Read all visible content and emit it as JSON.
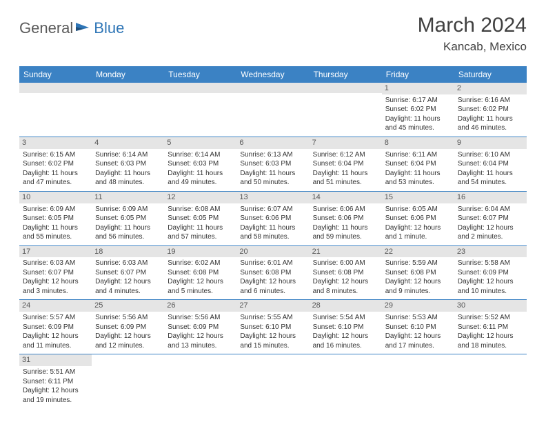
{
  "logo": {
    "textGeneral": "General",
    "textBlue": "Blue"
  },
  "title": "March 2024",
  "location": "Kancab, Mexico",
  "colors": {
    "headerBg": "#3b82c4",
    "headerText": "#ffffff",
    "dayNumBg": "#e5e5e5",
    "borderColor": "#3b82c4",
    "textColor": "#333333",
    "logoGray": "#5a5a5a",
    "logoBlue": "#2e75b6"
  },
  "dayHeaders": [
    "Sunday",
    "Monday",
    "Tuesday",
    "Wednesday",
    "Thursday",
    "Friday",
    "Saturday"
  ],
  "weeks": [
    [
      null,
      null,
      null,
      null,
      null,
      {
        "num": "1",
        "sunrise": "Sunrise: 6:17 AM",
        "sunset": "Sunset: 6:02 PM",
        "daylight": "Daylight: 11 hours and 45 minutes."
      },
      {
        "num": "2",
        "sunrise": "Sunrise: 6:16 AM",
        "sunset": "Sunset: 6:02 PM",
        "daylight": "Daylight: 11 hours and 46 minutes."
      }
    ],
    [
      {
        "num": "3",
        "sunrise": "Sunrise: 6:15 AM",
        "sunset": "Sunset: 6:02 PM",
        "daylight": "Daylight: 11 hours and 47 minutes."
      },
      {
        "num": "4",
        "sunrise": "Sunrise: 6:14 AM",
        "sunset": "Sunset: 6:03 PM",
        "daylight": "Daylight: 11 hours and 48 minutes."
      },
      {
        "num": "5",
        "sunrise": "Sunrise: 6:14 AM",
        "sunset": "Sunset: 6:03 PM",
        "daylight": "Daylight: 11 hours and 49 minutes."
      },
      {
        "num": "6",
        "sunrise": "Sunrise: 6:13 AM",
        "sunset": "Sunset: 6:03 PM",
        "daylight": "Daylight: 11 hours and 50 minutes."
      },
      {
        "num": "7",
        "sunrise": "Sunrise: 6:12 AM",
        "sunset": "Sunset: 6:04 PM",
        "daylight": "Daylight: 11 hours and 51 minutes."
      },
      {
        "num": "8",
        "sunrise": "Sunrise: 6:11 AM",
        "sunset": "Sunset: 6:04 PM",
        "daylight": "Daylight: 11 hours and 53 minutes."
      },
      {
        "num": "9",
        "sunrise": "Sunrise: 6:10 AM",
        "sunset": "Sunset: 6:04 PM",
        "daylight": "Daylight: 11 hours and 54 minutes."
      }
    ],
    [
      {
        "num": "10",
        "sunrise": "Sunrise: 6:09 AM",
        "sunset": "Sunset: 6:05 PM",
        "daylight": "Daylight: 11 hours and 55 minutes."
      },
      {
        "num": "11",
        "sunrise": "Sunrise: 6:09 AM",
        "sunset": "Sunset: 6:05 PM",
        "daylight": "Daylight: 11 hours and 56 minutes."
      },
      {
        "num": "12",
        "sunrise": "Sunrise: 6:08 AM",
        "sunset": "Sunset: 6:05 PM",
        "daylight": "Daylight: 11 hours and 57 minutes."
      },
      {
        "num": "13",
        "sunrise": "Sunrise: 6:07 AM",
        "sunset": "Sunset: 6:06 PM",
        "daylight": "Daylight: 11 hours and 58 minutes."
      },
      {
        "num": "14",
        "sunrise": "Sunrise: 6:06 AM",
        "sunset": "Sunset: 6:06 PM",
        "daylight": "Daylight: 11 hours and 59 minutes."
      },
      {
        "num": "15",
        "sunrise": "Sunrise: 6:05 AM",
        "sunset": "Sunset: 6:06 PM",
        "daylight": "Daylight: 12 hours and 1 minute."
      },
      {
        "num": "16",
        "sunrise": "Sunrise: 6:04 AM",
        "sunset": "Sunset: 6:07 PM",
        "daylight": "Daylight: 12 hours and 2 minutes."
      }
    ],
    [
      {
        "num": "17",
        "sunrise": "Sunrise: 6:03 AM",
        "sunset": "Sunset: 6:07 PM",
        "daylight": "Daylight: 12 hours and 3 minutes."
      },
      {
        "num": "18",
        "sunrise": "Sunrise: 6:03 AM",
        "sunset": "Sunset: 6:07 PM",
        "daylight": "Daylight: 12 hours and 4 minutes."
      },
      {
        "num": "19",
        "sunrise": "Sunrise: 6:02 AM",
        "sunset": "Sunset: 6:08 PM",
        "daylight": "Daylight: 12 hours and 5 minutes."
      },
      {
        "num": "20",
        "sunrise": "Sunrise: 6:01 AM",
        "sunset": "Sunset: 6:08 PM",
        "daylight": "Daylight: 12 hours and 6 minutes."
      },
      {
        "num": "21",
        "sunrise": "Sunrise: 6:00 AM",
        "sunset": "Sunset: 6:08 PM",
        "daylight": "Daylight: 12 hours and 8 minutes."
      },
      {
        "num": "22",
        "sunrise": "Sunrise: 5:59 AM",
        "sunset": "Sunset: 6:08 PM",
        "daylight": "Daylight: 12 hours and 9 minutes."
      },
      {
        "num": "23",
        "sunrise": "Sunrise: 5:58 AM",
        "sunset": "Sunset: 6:09 PM",
        "daylight": "Daylight: 12 hours and 10 minutes."
      }
    ],
    [
      {
        "num": "24",
        "sunrise": "Sunrise: 5:57 AM",
        "sunset": "Sunset: 6:09 PM",
        "daylight": "Daylight: 12 hours and 11 minutes."
      },
      {
        "num": "25",
        "sunrise": "Sunrise: 5:56 AM",
        "sunset": "Sunset: 6:09 PM",
        "daylight": "Daylight: 12 hours and 12 minutes."
      },
      {
        "num": "26",
        "sunrise": "Sunrise: 5:56 AM",
        "sunset": "Sunset: 6:09 PM",
        "daylight": "Daylight: 12 hours and 13 minutes."
      },
      {
        "num": "27",
        "sunrise": "Sunrise: 5:55 AM",
        "sunset": "Sunset: 6:10 PM",
        "daylight": "Daylight: 12 hours and 15 minutes."
      },
      {
        "num": "28",
        "sunrise": "Sunrise: 5:54 AM",
        "sunset": "Sunset: 6:10 PM",
        "daylight": "Daylight: 12 hours and 16 minutes."
      },
      {
        "num": "29",
        "sunrise": "Sunrise: 5:53 AM",
        "sunset": "Sunset: 6:10 PM",
        "daylight": "Daylight: 12 hours and 17 minutes."
      },
      {
        "num": "30",
        "sunrise": "Sunrise: 5:52 AM",
        "sunset": "Sunset: 6:11 PM",
        "daylight": "Daylight: 12 hours and 18 minutes."
      }
    ],
    [
      {
        "num": "31",
        "sunrise": "Sunrise: 5:51 AM",
        "sunset": "Sunset: 6:11 PM",
        "daylight": "Daylight: 12 hours and 19 minutes."
      },
      null,
      null,
      null,
      null,
      null,
      null
    ]
  ]
}
